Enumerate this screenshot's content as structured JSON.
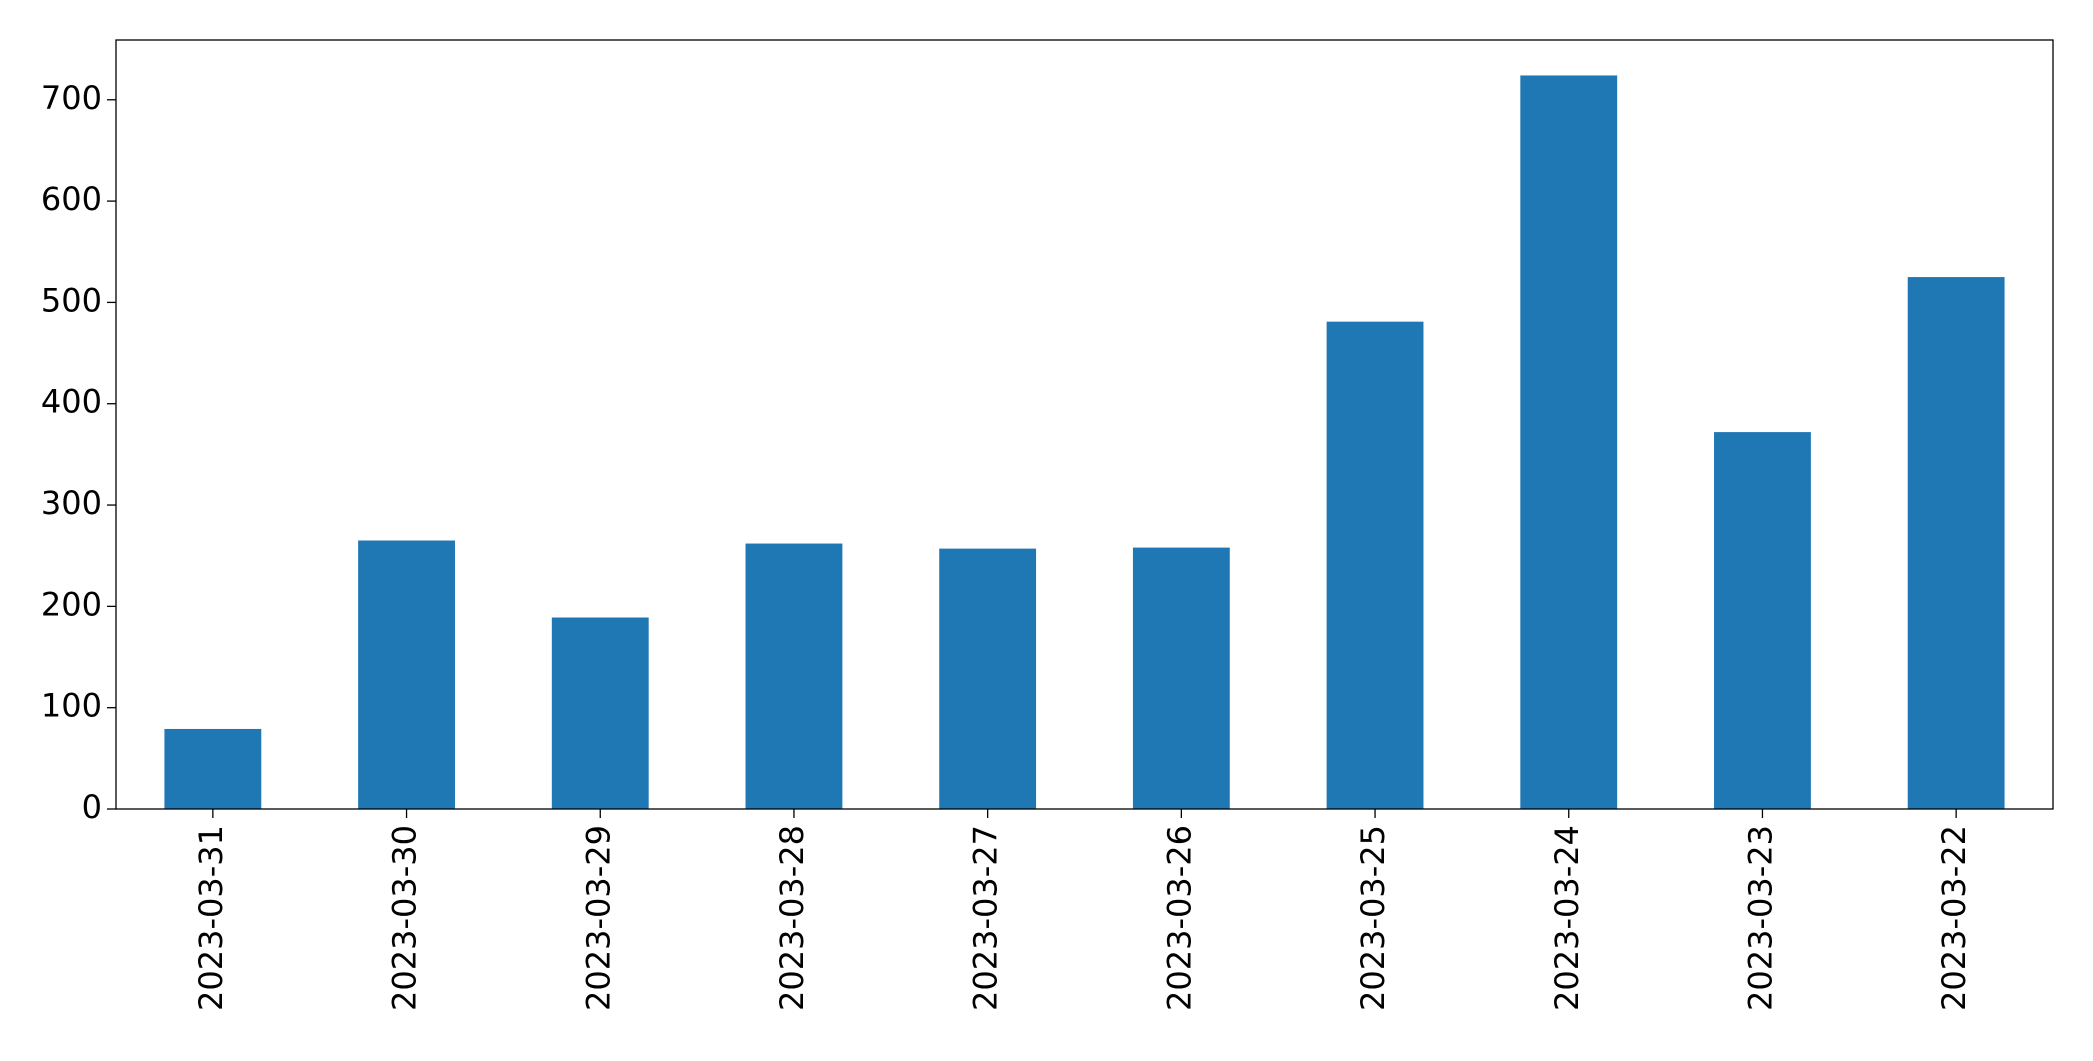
{
  "chart_data": {
    "type": "bar",
    "categories": [
      "2023-03-31",
      "2023-03-30",
      "2023-03-29",
      "2023-03-28",
      "2023-03-27",
      "2023-03-26",
      "2023-03-25",
      "2023-03-24",
      "2023-03-23",
      "2023-03-22"
    ],
    "values": [
      79,
      265,
      189,
      262,
      257,
      258,
      481,
      724,
      372,
      525
    ],
    "color": "#1f77b4",
    "ylim": [
      0,
      759
    ],
    "yticks": [
      0,
      100,
      200,
      300,
      400,
      500,
      600,
      700
    ],
    "grid": false
  }
}
